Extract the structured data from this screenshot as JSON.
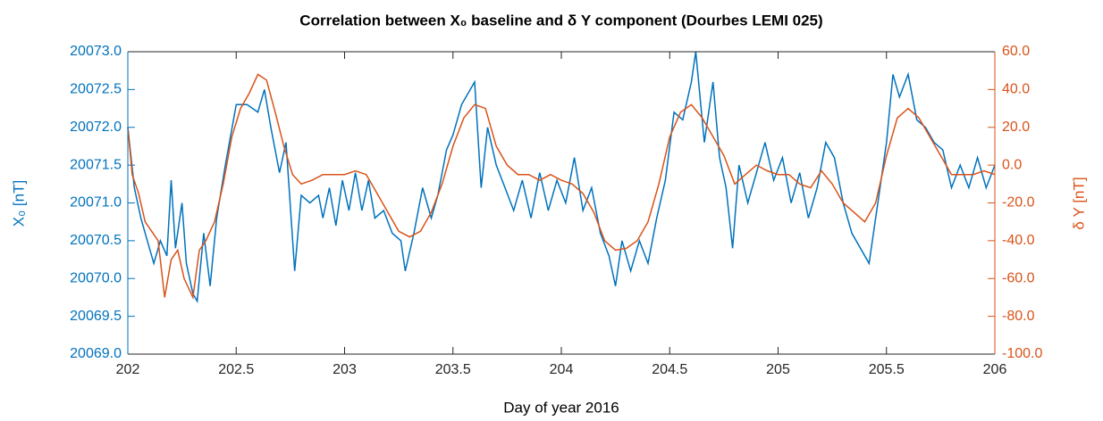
{
  "chart_data": {
    "type": "line",
    "title": "Correlation between X₀ baseline and δ Y component (Dourbes LEMI 025)",
    "xlabel": "Day of year 2016",
    "ylabel": "X₀ [nT]",
    "y2label": "δ Y [nT]",
    "xlim": [
      202,
      206
    ],
    "xticks": [
      202,
      202.5,
      203,
      203.5,
      204,
      204.5,
      205,
      205.5,
      206
    ],
    "ylim": [
      20069,
      20073
    ],
    "yticks": [
      {
        "value": 20069,
        "label": "20069.0"
      },
      {
        "value": 20069.5,
        "label": "20069.5"
      },
      {
        "value": 20070,
        "label": "20070.0"
      },
      {
        "value": 20070.5,
        "label": "20070.5"
      },
      {
        "value": 20071,
        "label": "20071.0"
      },
      {
        "value": 20071.5,
        "label": "20071.5"
      },
      {
        "value": 20072,
        "label": "20072.0"
      },
      {
        "value": 20072.5,
        "label": "20072.5"
      },
      {
        "value": 20073,
        "label": "20073.0"
      }
    ],
    "y2lim": [
      -100,
      60
    ],
    "y2ticks": [
      {
        "value": -100,
        "label": "-100.0"
      },
      {
        "value": -80,
        "label": "-80.0"
      },
      {
        "value": -60,
        "label": "-60.0"
      },
      {
        "value": -40,
        "label": "-40.0"
      },
      {
        "value": -20,
        "label": "-20.0"
      },
      {
        "value": 0,
        "label": "0.0"
      },
      {
        "value": 20,
        "label": "20.0"
      },
      {
        "value": 40,
        "label": "40.0"
      },
      {
        "value": 60,
        "label": "60.0"
      }
    ],
    "series": [
      {
        "color": "#0072bd",
        "x": [
          202.0,
          202.03,
          202.06,
          202.09,
          202.12,
          202.15,
          202.18,
          202.2,
          202.22,
          202.25,
          202.27,
          202.3,
          202.32,
          202.35,
          202.38,
          202.41,
          202.45,
          202.5,
          202.55,
          202.6,
          202.63,
          202.66,
          202.7,
          202.73,
          202.77,
          202.8,
          202.84,
          202.88,
          202.9,
          202.93,
          202.96,
          202.99,
          203.02,
          203.05,
          203.08,
          203.11,
          203.14,
          203.18,
          203.22,
          203.26,
          203.28,
          203.32,
          203.36,
          203.4,
          203.43,
          203.47,
          203.5,
          203.54,
          203.6,
          203.63,
          203.66,
          203.7,
          203.74,
          203.78,
          203.82,
          203.86,
          203.9,
          203.94,
          203.98,
          204.02,
          204.06,
          204.1,
          204.14,
          204.18,
          204.22,
          204.25,
          204.28,
          204.32,
          204.36,
          204.4,
          204.44,
          204.48,
          204.52,
          204.56,
          204.6,
          204.62,
          204.66,
          204.7,
          204.73,
          204.76,
          204.79,
          204.82,
          204.86,
          204.9,
          204.94,
          204.98,
          205.02,
          205.06,
          205.1,
          205.14,
          205.18,
          205.22,
          205.26,
          205.3,
          205.34,
          205.42,
          205.46,
          205.5,
          205.53,
          205.56,
          205.6,
          205.64,
          205.68,
          205.72,
          205.76,
          205.8,
          205.84,
          205.88,
          205.92,
          205.96,
          206.0
        ],
        "values": [
          20072.0,
          20071.2,
          20070.8,
          20070.5,
          20070.2,
          20070.5,
          20070.3,
          20071.3,
          20070.4,
          20071.0,
          20070.2,
          20069.8,
          20069.7,
          20070.6,
          20069.9,
          20070.8,
          20071.5,
          20072.3,
          20072.3,
          20072.2,
          20072.5,
          20072.0,
          20071.4,
          20071.8,
          20070.1,
          20071.1,
          20071.0,
          20071.1,
          20070.8,
          20071.2,
          20070.7,
          20071.3,
          20070.9,
          20071.4,
          20070.9,
          20071.3,
          20070.8,
          20070.9,
          20070.6,
          20070.5,
          20070.1,
          20070.6,
          20071.2,
          20070.8,
          20071.1,
          20071.7,
          20071.9,
          20072.3,
          20072.6,
          20071.2,
          20072.0,
          20071.5,
          20071.2,
          20070.9,
          20071.3,
          20070.8,
          20071.4,
          20070.9,
          20071.3,
          20071.0,
          20071.6,
          20070.9,
          20071.2,
          20070.6,
          20070.3,
          20069.9,
          20070.5,
          20070.1,
          20070.5,
          20070.2,
          20070.8,
          20071.3,
          20072.2,
          20072.1,
          20072.6,
          20073.0,
          20071.8,
          20072.6,
          20071.6,
          20071.2,
          20070.4,
          20071.5,
          20071.0,
          20071.4,
          20071.8,
          20071.3,
          20071.6,
          20071.0,
          20071.4,
          20070.8,
          20071.2,
          20071.8,
          20071.6,
          20071.0,
          20070.6,
          20070.2,
          20071.0,
          20071.8,
          20072.7,
          20072.4,
          20072.7,
          20072.1,
          20072.0,
          20071.8,
          20071.7,
          20071.2,
          20071.5,
          20071.2,
          20071.6,
          20071.2,
          20071.5
        ]
      },
      {
        "color": "#d95319",
        "axis": "y2",
        "x": [
          202.0,
          202.02,
          202.05,
          202.08,
          202.11,
          202.14,
          202.17,
          202.2,
          202.23,
          202.26,
          202.3,
          202.33,
          202.36,
          202.4,
          202.44,
          202.48,
          202.52,
          202.56,
          202.6,
          202.64,
          202.68,
          202.72,
          202.76,
          202.8,
          202.85,
          202.9,
          202.95,
          203.0,
          203.05,
          203.1,
          203.15,
          203.2,
          203.25,
          203.3,
          203.35,
          203.4,
          203.45,
          203.5,
          203.55,
          203.6,
          203.65,
          203.7,
          203.75,
          203.8,
          203.85,
          203.9,
          203.95,
          204.0,
          204.05,
          204.1,
          204.15,
          204.2,
          204.25,
          204.3,
          204.35,
          204.4,
          204.45,
          204.5,
          204.55,
          204.6,
          204.65,
          204.7,
          204.75,
          204.8,
          204.85,
          204.9,
          204.95,
          205.0,
          205.05,
          205.1,
          205.15,
          205.2,
          205.25,
          205.3,
          205.35,
          205.4,
          205.45,
          205.5,
          205.55,
          205.6,
          205.65,
          205.7,
          205.75,
          205.8,
          205.85,
          205.9,
          205.95,
          206.0
        ],
        "values": [
          20,
          -5,
          -15,
          -30,
          -35,
          -40,
          -70,
          -50,
          -45,
          -60,
          -70,
          -45,
          -40,
          -30,
          -10,
          15,
          30,
          38,
          48,
          45,
          28,
          10,
          -5,
          -10,
          -8,
          -5,
          -5,
          -5,
          -3,
          -5,
          -15,
          -25,
          -35,
          -38,
          -35,
          -25,
          -10,
          10,
          25,
          32,
          30,
          10,
          0,
          -5,
          -5,
          -8,
          -5,
          -8,
          -10,
          -15,
          -25,
          -40,
          -45,
          -44,
          -40,
          -30,
          -10,
          15,
          28,
          32,
          25,
          15,
          5,
          -10,
          -5,
          0,
          -3,
          -5,
          -5,
          -10,
          -12,
          -3,
          -10,
          -20,
          -25,
          -30,
          -20,
          5,
          25,
          30,
          25,
          15,
          5,
          -5,
          -5,
          -5,
          -3,
          -5
        ]
      }
    ]
  }
}
